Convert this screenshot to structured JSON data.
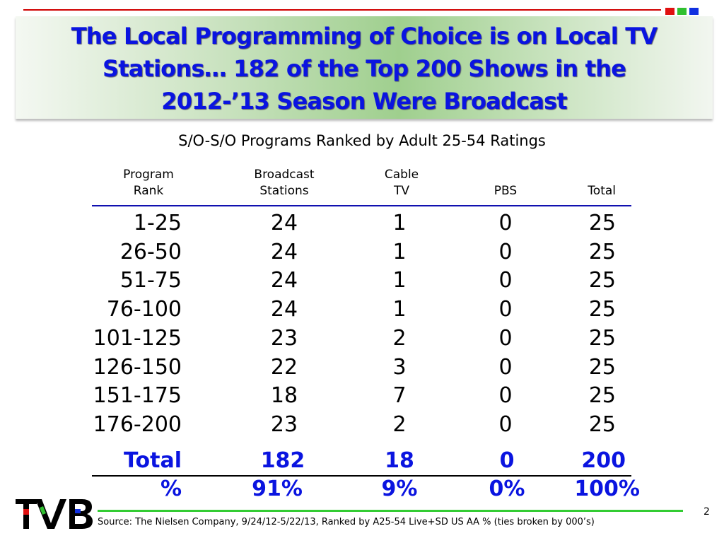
{
  "colors": {
    "title": "#0a14e0",
    "accent_red": "#d00000",
    "accent_green": "#33cc33",
    "accent_blue": "#1010d0"
  },
  "title": [
    "The Local Programming of Choice is on Local TV",
    "Stations… 182 of the Top 200 Shows in the",
    "2012-’13 Season Were Broadcast"
  ],
  "subtitle": "S/O-S/O Programs Ranked by Adult 25-54 Ratings",
  "table": {
    "headers": [
      [
        "Program",
        "Rank"
      ],
      [
        "Broadcast",
        "Stations"
      ],
      [
        "Cable",
        "TV"
      ],
      [
        "",
        "PBS"
      ],
      [
        "",
        "Total"
      ]
    ],
    "rows": [
      [
        "1-25",
        "24",
        "1",
        "0",
        "25"
      ],
      [
        "26-50",
        "24",
        "1",
        "0",
        "25"
      ],
      [
        "51-75",
        "24",
        "1",
        "0",
        "25"
      ],
      [
        "76-100",
        "24",
        "1",
        "0",
        "25"
      ],
      [
        "101-125",
        "23",
        "2",
        "0",
        "25"
      ],
      [
        "126-150",
        "22",
        "3",
        "0",
        "25"
      ],
      [
        "151-175",
        "18",
        "7",
        "0",
        "25"
      ],
      [
        "176-200",
        "23",
        "2",
        "0",
        "25"
      ]
    ],
    "total": [
      "Total",
      "182",
      "18",
      "0",
      "200"
    ],
    "percent": [
      "%",
      "91%",
      "9%",
      "0%",
      "100%"
    ]
  },
  "footer": {
    "source": "Source: The Nielsen Company, 9/24/12-5/22/13, Ranked by A25-54 Live+SD US AA % (ties broken by 000’s)",
    "page": "2",
    "logo": "TVB"
  }
}
